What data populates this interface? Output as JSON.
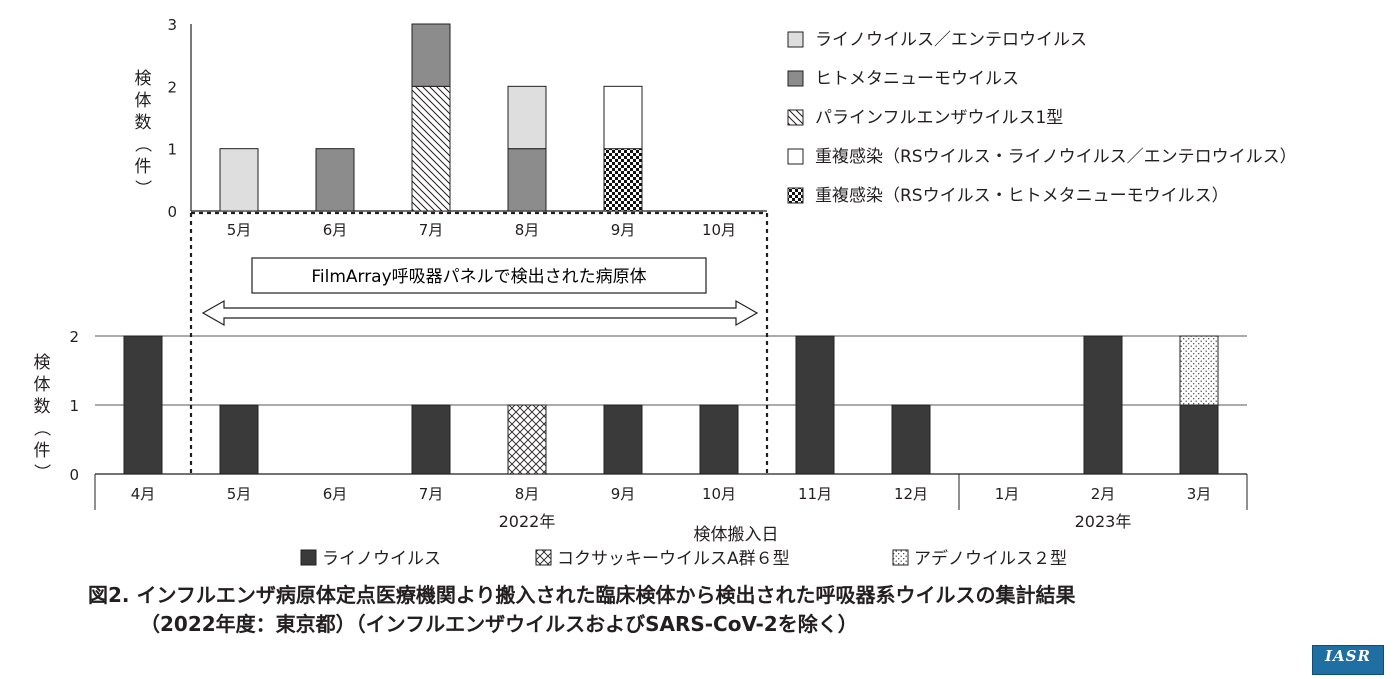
{
  "caption": {
    "line1": "図2. インフルエンザ病原体定点医療機関より搬入された臨床検体から検出された呼吸器系ウイルスの集計結果",
    "line2": "（2022年度：東京都）（インフルエンザウイルスおよびSARS-CoV-2を除く）"
  },
  "logo": {
    "text": "IASR"
  },
  "chart_data": [
    {
      "type": "bar",
      "stacked": true,
      "title": "FilmArray呼吸器パネルで検出された病原体",
      "ylabel": "検体数（件）",
      "ylim": [
        0,
        3
      ],
      "yticks": [
        0,
        1,
        2,
        3
      ],
      "categories": [
        "5月",
        "6月",
        "7月",
        "8月",
        "9月",
        "10月"
      ],
      "series": [
        {
          "name": "ライノウイルス／エンテロウイルス",
          "color": "#e0e0e0",
          "pattern": "light",
          "values": [
            1,
            0,
            0,
            1,
            0,
            0
          ]
        },
        {
          "name": "ヒトメタニューモウイルス",
          "color": "#8c8c8c",
          "pattern": "mid",
          "values": [
            0,
            1,
            1,
            1,
            0,
            0
          ]
        },
        {
          "name": "パラインフルエンザウイルス1型",
          "color": "#ffffff",
          "pattern": "diag",
          "values": [
            0,
            0,
            2,
            0,
            0,
            0
          ]
        },
        {
          "name": "重複感染（RSウイルス・ライノウイルス／エンテロウイルス）",
          "color": "#ffffff",
          "pattern": "white",
          "values": [
            0,
            0,
            0,
            0,
            1,
            0
          ]
        },
        {
          "name": "重複感染（RSウイルス・ヒトメタニューモウイルス）",
          "color": "#000000",
          "pattern": "checker",
          "values": [
            0,
            0,
            0,
            0,
            1,
            0
          ]
        }
      ],
      "stack_order": [
        [
          0
        ],
        [
          1
        ],
        [
          2,
          1
        ],
        [
          1,
          0
        ],
        [
          4,
          3
        ],
        []
      ],
      "legend_position": "right"
    },
    {
      "type": "bar",
      "stacked": true,
      "ylabel": "検体数（件）",
      "xlabel": "検体搬入日",
      "ylim": [
        0,
        2
      ],
      "yticks": [
        0,
        1,
        2
      ],
      "categories": [
        "4月",
        "5月",
        "6月",
        "7月",
        "8月",
        "9月",
        "10月",
        "11月",
        "12月",
        "1月",
        "2月",
        "3月"
      ],
      "year_groups": [
        "2022年",
        "2023年"
      ],
      "series": [
        {
          "name": "ライノウイルス",
          "color": "#3a3a3a",
          "pattern": "dark",
          "values": [
            2,
            1,
            0,
            1,
            0,
            1,
            1,
            2,
            1,
            0,
            2,
            1
          ]
        },
        {
          "name": "コクサッキーウイルスA群６型",
          "color": "#ffffff",
          "pattern": "cross",
          "values": [
            0,
            0,
            0,
            0,
            1,
            0,
            0,
            0,
            0,
            0,
            0,
            0
          ]
        },
        {
          "name": "アデノウイルス２型",
          "color": "#ffffff",
          "pattern": "dots",
          "values": [
            0,
            0,
            0,
            0,
            0,
            0,
            0,
            0,
            0,
            0,
            0,
            1
          ]
        }
      ],
      "legend_position": "bottom"
    }
  ]
}
